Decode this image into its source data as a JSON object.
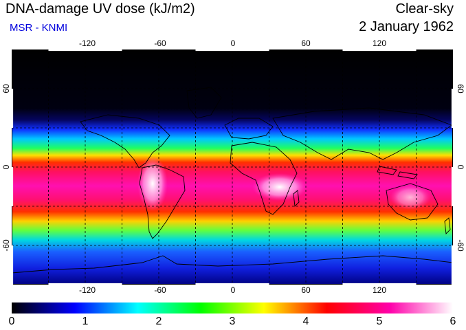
{
  "header": {
    "title": "DNA-damage UV dose (kJ/m2)",
    "subtitle": "MSR - KNMI",
    "sky_condition": "Clear-sky",
    "date": "2 January 1962"
  },
  "map": {
    "longitude_ticks": [
      "-120",
      "-60",
      "0",
      "60",
      "120"
    ],
    "longitude_values": [
      -120,
      -60,
      0,
      60,
      120
    ],
    "latitude_ticks": [
      "60",
      "0",
      "-60"
    ],
    "latitude_values": [
      60,
      0,
      -60
    ],
    "longitude_range": [
      -180,
      180
    ],
    "latitude_range": [
      -90,
      90
    ],
    "gridlines": "dashed",
    "projection": "equirectangular"
  },
  "colorbar": {
    "labels": [
      "0",
      "1",
      "2",
      "3",
      "4",
      "5",
      "6"
    ],
    "min": 0,
    "max": 6,
    "colors": [
      "#000000",
      "#0000ff",
      "#00ffff",
      "#00ff00",
      "#ffff00",
      "#ff0000",
      "#ff00aa",
      "#ffffff"
    ]
  },
  "colors": {
    "subtitle": "#0000dd",
    "coastline": "#000000",
    "grid": "#000000"
  }
}
